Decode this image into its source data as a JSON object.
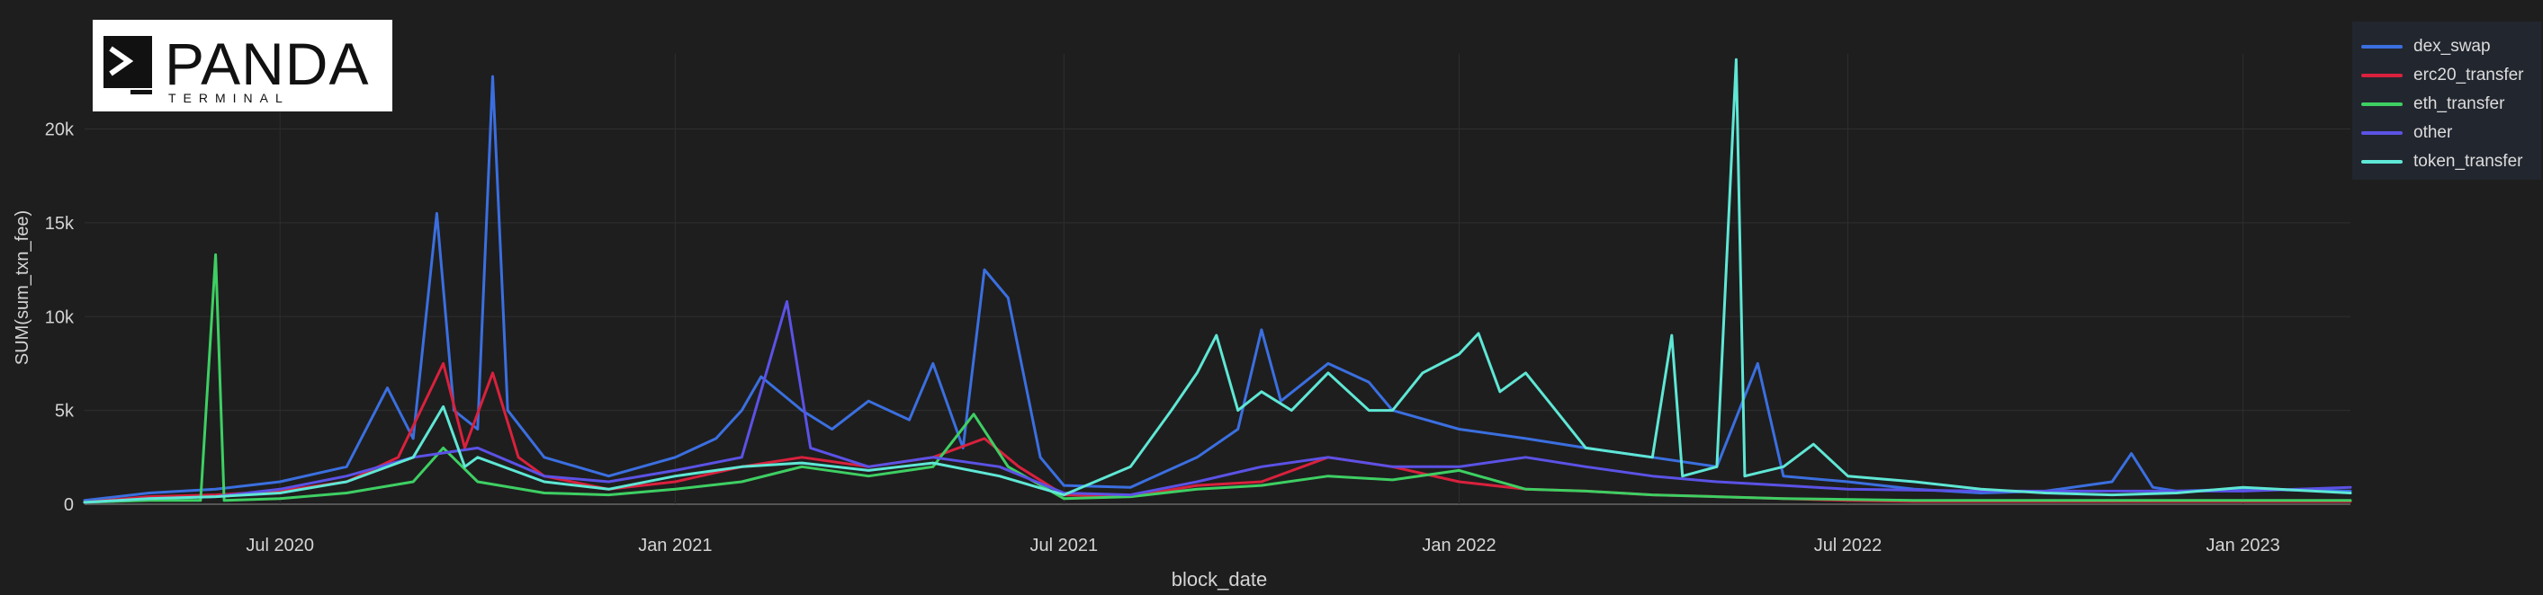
{
  "logo": {
    "title": "PANDA",
    "subtitle": "TERMINAL"
  },
  "colors": {
    "background": "#1e1e1e",
    "grid": "#2e2e2e",
    "axis_text": "#d4d4d4"
  },
  "legend": [
    {
      "name": "dex_swap",
      "color": "#3b6fe0"
    },
    {
      "name": "erc20_transfer",
      "color": "#d9213d"
    },
    {
      "name": "eth_transfer",
      "color": "#3ecf63"
    },
    {
      "name": "other",
      "color": "#5b52e6"
    },
    {
      "name": "token_transfer",
      "color": "#5fe7d5"
    }
  ],
  "chart_data": {
    "type": "line",
    "xlabel": "block_date",
    "ylabel": "SUM(sum_txn_fee)",
    "x_range": [
      "2020-04-01",
      "2023-02-20"
    ],
    "ylim": [
      0,
      24000
    ],
    "y_ticks": [
      {
        "value": 0,
        "label": "0"
      },
      {
        "value": 5000,
        "label": "5k"
      },
      {
        "value": 10000,
        "label": "10k"
      },
      {
        "value": 15000,
        "label": "15k"
      },
      {
        "value": 20000,
        "label": "20k"
      }
    ],
    "x_ticks": [
      {
        "date": "2020-07-01",
        "label": "Jul 2020"
      },
      {
        "date": "2021-01-01",
        "label": "Jan 2021"
      },
      {
        "date": "2021-07-01",
        "label": "Jul 2021"
      },
      {
        "date": "2022-01-01",
        "label": "Jan 2022"
      },
      {
        "date": "2022-07-01",
        "label": "Jul 2022"
      },
      {
        "date": "2023-01-01",
        "label": "Jan 2023"
      }
    ],
    "grid": true,
    "legend_position": "top-right",
    "series": [
      {
        "name": "dex_swap",
        "color": "#3b6fe0",
        "points": [
          [
            "2020-04-01",
            200
          ],
          [
            "2020-05-01",
            600
          ],
          [
            "2020-06-01",
            800
          ],
          [
            "2020-07-01",
            1200
          ],
          [
            "2020-08-01",
            2000
          ],
          [
            "2020-08-20",
            6200
          ],
          [
            "2020-09-01",
            3500
          ],
          [
            "2020-09-12",
            15500
          ],
          [
            "2020-09-20",
            5000
          ],
          [
            "2020-10-01",
            4000
          ],
          [
            "2020-10-08",
            22800
          ],
          [
            "2020-10-15",
            5000
          ],
          [
            "2020-11-01",
            2500
          ],
          [
            "2020-12-01",
            1500
          ],
          [
            "2021-01-01",
            2500
          ],
          [
            "2021-01-20",
            3500
          ],
          [
            "2021-02-01",
            5000
          ],
          [
            "2021-02-10",
            6800
          ],
          [
            "2021-03-01",
            5000
          ],
          [
            "2021-03-15",
            4000
          ],
          [
            "2021-04-01",
            5500
          ],
          [
            "2021-04-20",
            4500
          ],
          [
            "2021-05-01",
            7500
          ],
          [
            "2021-05-15",
            3000
          ],
          [
            "2021-05-25",
            12500
          ],
          [
            "2021-06-05",
            11000
          ],
          [
            "2021-06-20",
            2500
          ],
          [
            "2021-07-01",
            1000
          ],
          [
            "2021-08-01",
            900
          ],
          [
            "2021-09-01",
            2500
          ],
          [
            "2021-09-20",
            4000
          ],
          [
            "2021-10-01",
            9300
          ],
          [
            "2021-10-10",
            5500
          ],
          [
            "2021-11-01",
            7500
          ],
          [
            "2021-11-20",
            6500
          ],
          [
            "2021-12-01",
            5000
          ],
          [
            "2022-01-01",
            4000
          ],
          [
            "2022-02-01",
            3500
          ],
          [
            "2022-03-01",
            3000
          ],
          [
            "2022-04-01",
            2500
          ],
          [
            "2022-05-01",
            2000
          ],
          [
            "2022-05-20",
            7500
          ],
          [
            "2022-06-01",
            1500
          ],
          [
            "2022-07-01",
            1200
          ],
          [
            "2022-08-01",
            800
          ],
          [
            "2022-09-01",
            600
          ],
          [
            "2022-10-01",
            700
          ],
          [
            "2022-11-01",
            1200
          ],
          [
            "2022-11-10",
            2700
          ],
          [
            "2022-11-20",
            900
          ],
          [
            "2022-12-01",
            700
          ],
          [
            "2023-01-01",
            800
          ],
          [
            "2023-02-20",
            700
          ]
        ]
      },
      {
        "name": "erc20_transfer",
        "color": "#d9213d",
        "points": [
          [
            "2020-04-01",
            100
          ],
          [
            "2020-05-01",
            400
          ],
          [
            "2020-06-01",
            500
          ],
          [
            "2020-07-01",
            700
          ],
          [
            "2020-08-01",
            1200
          ],
          [
            "2020-08-25",
            2500
          ],
          [
            "2020-09-15",
            7500
          ],
          [
            "2020-09-25",
            3000
          ],
          [
            "2020-10-08",
            7000
          ],
          [
            "2020-10-20",
            2500
          ],
          [
            "2020-11-01",
            1500
          ],
          [
            "2020-12-01",
            800
          ],
          [
            "2021-01-01",
            1200
          ],
          [
            "2021-02-01",
            2000
          ],
          [
            "2021-03-01",
            2500
          ],
          [
            "2021-04-01",
            2000
          ],
          [
            "2021-05-01",
            2500
          ],
          [
            "2021-05-25",
            3500
          ],
          [
            "2021-06-10",
            2000
          ],
          [
            "2021-07-01",
            500
          ],
          [
            "2021-08-01",
            400
          ],
          [
            "2021-09-01",
            1000
          ],
          [
            "2021-10-01",
            1200
          ],
          [
            "2021-11-01",
            2500
          ],
          [
            "2021-12-01",
            2000
          ],
          [
            "2022-01-01",
            1200
          ],
          [
            "2022-02-01",
            800
          ],
          [
            "2022-03-01",
            700
          ],
          [
            "2022-04-01",
            500
          ],
          [
            "2022-05-01",
            400
          ],
          [
            "2022-06-01",
            300
          ],
          [
            "2022-07-01",
            200
          ],
          [
            "2022-08-01",
            150
          ],
          [
            "2022-10-01",
            150
          ],
          [
            "2022-12-01",
            150
          ],
          [
            "2023-02-20",
            150
          ]
        ]
      },
      {
        "name": "eth_transfer",
        "color": "#3ecf63",
        "points": [
          [
            "2020-04-01",
            100
          ],
          [
            "2020-05-01",
            200
          ],
          [
            "2020-05-25",
            200
          ],
          [
            "2020-06-01",
            13300
          ],
          [
            "2020-06-05",
            200
          ],
          [
            "2020-07-01",
            300
          ],
          [
            "2020-08-01",
            600
          ],
          [
            "2020-09-01",
            1200
          ],
          [
            "2020-09-15",
            3000
          ],
          [
            "2020-10-01",
            1200
          ],
          [
            "2020-11-01",
            600
          ],
          [
            "2020-12-01",
            500
          ],
          [
            "2021-01-01",
            800
          ],
          [
            "2021-02-01",
            1200
          ],
          [
            "2021-03-01",
            2000
          ],
          [
            "2021-04-01",
            1500
          ],
          [
            "2021-05-01",
            2000
          ],
          [
            "2021-05-20",
            4800
          ],
          [
            "2021-06-05",
            2000
          ],
          [
            "2021-07-01",
            300
          ],
          [
            "2021-08-01",
            400
          ],
          [
            "2021-09-01",
            800
          ],
          [
            "2021-10-01",
            1000
          ],
          [
            "2021-11-01",
            1500
          ],
          [
            "2021-12-01",
            1300
          ],
          [
            "2022-01-01",
            1800
          ],
          [
            "2022-02-01",
            800
          ],
          [
            "2022-03-01",
            700
          ],
          [
            "2022-04-01",
            500
          ],
          [
            "2022-05-01",
            400
          ],
          [
            "2022-06-01",
            300
          ],
          [
            "2022-08-01",
            200
          ],
          [
            "2022-10-01",
            200
          ],
          [
            "2022-12-01",
            200
          ],
          [
            "2023-02-20",
            200
          ]
        ]
      },
      {
        "name": "other",
        "color": "#5b52e6",
        "points": [
          [
            "2020-04-01",
            100
          ],
          [
            "2020-05-01",
            300
          ],
          [
            "2020-06-01",
            400
          ],
          [
            "2020-07-01",
            800
          ],
          [
            "2020-08-01",
            1500
          ],
          [
            "2020-09-01",
            2500
          ],
          [
            "2020-10-01",
            3000
          ],
          [
            "2020-11-01",
            1500
          ],
          [
            "2020-12-01",
            1200
          ],
          [
            "2021-01-01",
            1800
          ],
          [
            "2021-02-01",
            2500
          ],
          [
            "2021-02-22",
            10800
          ],
          [
            "2021-03-05",
            3000
          ],
          [
            "2021-04-01",
            2000
          ],
          [
            "2021-05-01",
            2500
          ],
          [
            "2021-06-01",
            2000
          ],
          [
            "2021-07-01",
            600
          ],
          [
            "2021-08-01",
            500
          ],
          [
            "2021-09-01",
            1200
          ],
          [
            "2021-10-01",
            2000
          ],
          [
            "2021-11-01",
            2500
          ],
          [
            "2021-12-01",
            2000
          ],
          [
            "2022-01-01",
            2000
          ],
          [
            "2022-02-01",
            2500
          ],
          [
            "2022-03-01",
            2000
          ],
          [
            "2022-04-01",
            1500
          ],
          [
            "2022-05-01",
            1200
          ],
          [
            "2022-06-01",
            1000
          ],
          [
            "2022-07-01",
            800
          ],
          [
            "2022-09-01",
            700
          ],
          [
            "2022-11-01",
            700
          ],
          [
            "2023-01-01",
            700
          ],
          [
            "2023-02-20",
            900
          ]
        ]
      },
      {
        "name": "token_transfer",
        "color": "#5fe7d5",
        "points": [
          [
            "2020-04-01",
            100
          ],
          [
            "2020-05-01",
            300
          ],
          [
            "2020-06-01",
            400
          ],
          [
            "2020-07-01",
            600
          ],
          [
            "2020-08-01",
            1200
          ],
          [
            "2020-09-01",
            2500
          ],
          [
            "2020-09-15",
            5200
          ],
          [
            "2020-09-25",
            2000
          ],
          [
            "2020-10-01",
            2500
          ],
          [
            "2020-11-01",
            1200
          ],
          [
            "2020-12-01",
            800
          ],
          [
            "2021-01-01",
            1500
          ],
          [
            "2021-02-01",
            2000
          ],
          [
            "2021-03-01",
            2200
          ],
          [
            "2021-04-01",
            1800
          ],
          [
            "2021-05-01",
            2200
          ],
          [
            "2021-06-01",
            1500
          ],
          [
            "2021-07-01",
            500
          ],
          [
            "2021-08-01",
            2000
          ],
          [
            "2021-08-20",
            5000
          ],
          [
            "2021-09-01",
            7000
          ],
          [
            "2021-09-10",
            9000
          ],
          [
            "2021-09-20",
            5000
          ],
          [
            "2021-10-01",
            6000
          ],
          [
            "2021-10-15",
            5000
          ],
          [
            "2021-11-01",
            7000
          ],
          [
            "2021-11-20",
            5000
          ],
          [
            "2021-12-01",
            5000
          ],
          [
            "2021-12-15",
            7000
          ],
          [
            "2022-01-01",
            8000
          ],
          [
            "2022-01-10",
            9100
          ],
          [
            "2022-01-20",
            6000
          ],
          [
            "2022-02-01",
            7000
          ],
          [
            "2022-02-15",
            5000
          ],
          [
            "2022-03-01",
            3000
          ],
          [
            "2022-04-01",
            2500
          ],
          [
            "2022-04-10",
            9000
          ],
          [
            "2022-04-15",
            1500
          ],
          [
            "2022-05-01",
            2000
          ],
          [
            "2022-05-10",
            23700
          ],
          [
            "2022-05-14",
            1500
          ],
          [
            "2022-06-01",
            2000
          ],
          [
            "2022-06-15",
            3200
          ],
          [
            "2022-07-01",
            1500
          ],
          [
            "2022-08-01",
            1200
          ],
          [
            "2022-09-01",
            800
          ],
          [
            "2022-10-01",
            600
          ],
          [
            "2022-11-01",
            500
          ],
          [
            "2022-12-01",
            600
          ],
          [
            "2023-01-01",
            900
          ],
          [
            "2023-02-20",
            600
          ]
        ]
      }
    ]
  }
}
